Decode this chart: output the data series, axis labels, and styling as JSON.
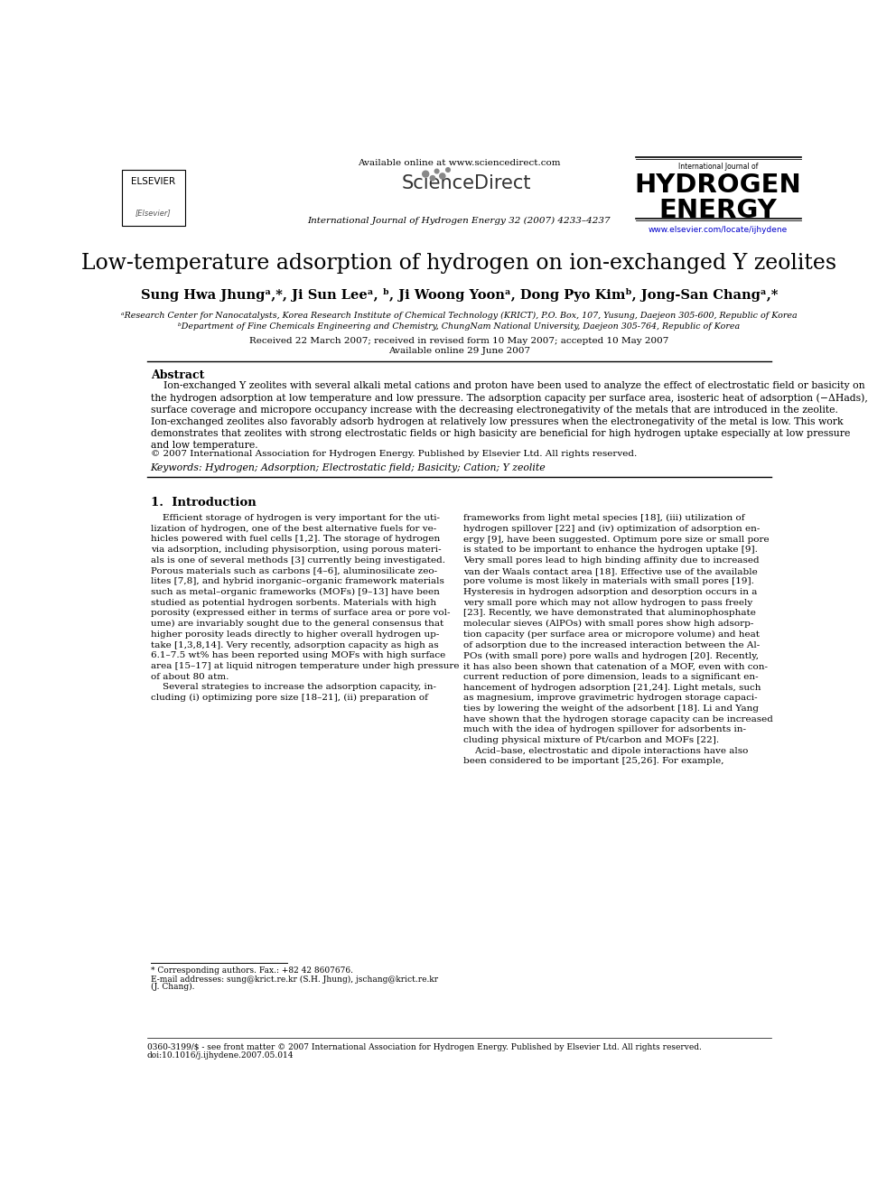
{
  "bg_color": "#ffffff",
  "available_online": "Available online at www.sciencedirect.com",
  "journal_line": "International Journal of Hydrogen Energy 32 (2007) 4233–4237",
  "elsevier_text": "ELSEVIER",
  "sciencedirect_text": "ScienceDirect",
  "hydrogen_line1": "International Journal of",
  "hydrogen_line2": "HYDROGEN",
  "hydrogen_line3": "ENERGY",
  "url": "www.elsevier.com/locate/ijhydene",
  "title": "Low-temperature adsorption of hydrogen on ion-exchanged Y zeolites",
  "authors": "Sung Hwa Jhungᵃ,*, Ji Sun Leeᵃ, ᵇ, Ji Woong Yoonᵃ, Dong Pyo Kimᵇ, Jong-San Changᵃ,*",
  "affil_a": "ᵃResearch Center for Nanocatalysts, Korea Research Institute of Chemical Technology (KRICT), P.O. Box, 107, Yusung, Daejeon 305-600, Republic of Korea",
  "affil_b": "ᵇDepartment of Fine Chemicals Engineering and Chemistry, ChungNam National University, Daejeon 305-764, Republic of Korea",
  "received": "Received 22 March 2007; received in revised form 10 May 2007; accepted 10 May 2007",
  "available": "Available online 29 June 2007",
  "abstract_heading": "Abstract",
  "abstract_text": "Ion-exchanged Y zeolites with several alkali metal cations and proton have been used to analyze the effect of electrostatic field or basicity on\nthe hydrogen adsorption at low temperature and low pressure. The adsorption capacity per surface area, isosteric heat of adsorption (−ΔHads),\nsurface coverage and micropore occupancy increase with the decreasing electronegativity of the metals that are introduced in the zeolite.\nIon-exchanged zeolites also favorably adsorb hydrogen at relatively low pressures when the electronegativity of the metal is low. This work\ndemonstrates that zeolites with strong electrostatic fields or high basicity are beneficial for high hydrogen uptake especially at low pressure\nand low temperature.",
  "copyright": "© 2007 International Association for Hydrogen Energy. Published by Elsevier Ltd. All rights reserved.",
  "keywords": "Keywords: Hydrogen; Adsorption; Electrostatic field; Basicity; Cation; Y zeolite",
  "intro_heading": "1.  Introduction",
  "intro_col1": "    Efficient storage of hydrogen is very important for the uti-\nlization of hydrogen, one of the best alternative fuels for ve-\nhicles powered with fuel cells [1,2]. The storage of hydrogen\nvia adsorption, including physisorption, using porous materi-\nals is one of several methods [3] currently being investigated.\nPorous materials such as carbons [4–6], aluminosilicate zeo-\nlites [7,8], and hybrid inorganic–organic framework materials\nsuch as metal–organic frameworks (MOFs) [9–13] have been\nstudied as potential hydrogen sorbents. Materials with high\nporosity (expressed either in terms of surface area or pore vol-\nume) are invariably sought due to the general consensus that\nhigher porosity leads directly to higher overall hydrogen up-\ntake [1,3,8,14]. Very recently, adsorption capacity as high as\n6.1–7.5 wt% has been reported using MOFs with high surface\narea [15–17] at liquid nitrogen temperature under high pressure\nof about 80 atm.\n    Several strategies to increase the adsorption capacity, in-\ncluding (i) optimizing pore size [18–21], (ii) preparation of",
  "intro_col2": "frameworks from light metal species [18], (iii) utilization of\nhydrogen spillover [22] and (iv) optimization of adsorption en-\nergy [9], have been suggested. Optimum pore size or small pore\nis stated to be important to enhance the hydrogen uptake [9].\nVery small pores lead to high binding affinity due to increased\nvan der Waals contact area [18]. Effective use of the available\npore volume is most likely in materials with small pores [19].\nHysteresis in hydrogen adsorption and desorption occurs in a\nvery small pore which may not allow hydrogen to pass freely\n[23]. Recently, we have demonstrated that aluminophosphate\nmolecular sieves (AlPOs) with small pores show high adsorp-\ntion capacity (per surface area or micropore volume) and heat\nof adsorption due to the increased interaction between the Al-\nPOs (with small pore) pore walls and hydrogen [20]. Recently,\nit has also been shown that catenation of a MOF, even with con-\ncurrent reduction of pore dimension, leads to a significant en-\nhancement of hydrogen adsorption [21,24]. Light metals, such\nas magnesium, improve gravimetric hydrogen storage capaci-\nties by lowering the weight of the adsorbent [18]. Li and Yang\nhave shown that the hydrogen storage capacity can be increased\nmuch with the idea of hydrogen spillover for adsorbents in-\ncluding physical mixture of Pt/carbon and MOFs [22].\n    Acid–base, electrostatic and dipole interactions have also\nbeen considered to be important [25,26]. For example,",
  "footnote_corr": "* Corresponding authors. Fax.: +82 42 8607676.",
  "footnote_email": "E-mail addresses: sung@krict.re.kr (S.H. Jhung), jschang@krict.re.kr",
  "footnote_email2": "(J. Chang).",
  "footer_line1": "0360-3199/$ - see front matter © 2007 International Association for Hydrogen Energy. Published by Elsevier Ltd. All rights reserved.",
  "footer_line2": "doi:10.1016/j.ijhydene.2007.05.014"
}
